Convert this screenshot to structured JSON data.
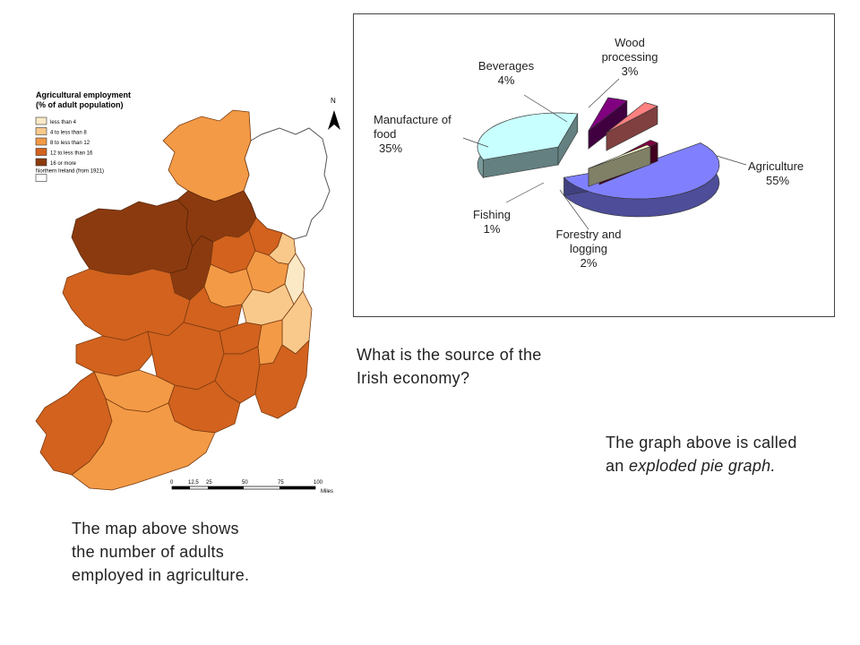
{
  "map": {
    "legend_title_line1": "Agricultural employment",
    "legend_title_line2": "(% of adult population)",
    "legend_items": [
      {
        "label": "less than 4",
        "color": "#fbe9c6"
      },
      {
        "label": "4 to less than 8",
        "color": "#f9c98c"
      },
      {
        "label": "8 to less than 12",
        "color": "#f39a46"
      },
      {
        "label": "12 to less than 16",
        "color": "#d2621e"
      },
      {
        "label": "16 or more",
        "color": "#8b3a0f"
      },
      {
        "label": "Northern Ireland (from 1921)",
        "color": "#ffffff"
      }
    ],
    "north_label": "N",
    "scale_ticks": [
      "0",
      "12.5",
      "25",
      "50",
      "75",
      "100"
    ],
    "scale_unit": "Miles"
  },
  "chart_data": {
    "type": "pie",
    "title": "",
    "slices": [
      {
        "name": "Agriculture",
        "value": 55,
        "label": "55%",
        "color": "#8080ff"
      },
      {
        "name": "Manufacture of food",
        "value": 35,
        "label": "35%",
        "color": "#c8ffff"
      },
      {
        "name": "Beverages",
        "value": 4,
        "label": "4%",
        "color": "#800080"
      },
      {
        "name": "Wood processing",
        "value": 3,
        "label": "3%",
        "color": "#ff8080"
      },
      {
        "name": "Forestry and logging",
        "value": 2,
        "label": "2%",
        "color": "#800040"
      },
      {
        "name": "Fishing",
        "value": 1,
        "label": "1%",
        "color": "#ffffcc"
      }
    ],
    "exploded": true,
    "legend": "none"
  },
  "text": {
    "question_line1": "What is the source of the",
    "question_line2": "Irish economy?",
    "graph_note_line1": "The graph above is called",
    "graph_note_line2_prefix": "an ",
    "graph_note_line2_italic": "exploded pie graph.",
    "map_note_line1": "The map above shows",
    "map_note_line2": "the number of adults",
    "map_note_line3": "employed in agriculture."
  }
}
